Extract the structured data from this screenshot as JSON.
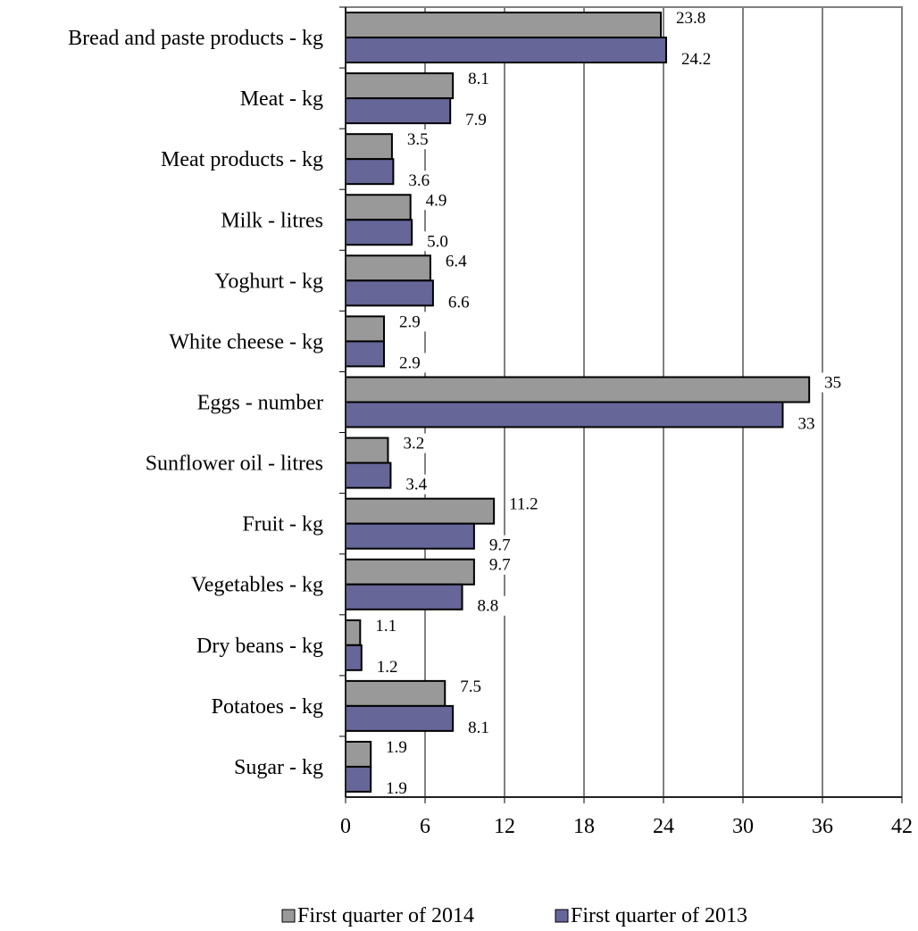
{
  "chart_data": {
    "type": "bar",
    "orientation": "horizontal",
    "categories": [
      "Bread and paste products - kg",
      "Meat - kg",
      "Meat products - kg",
      "Milk - litres",
      "Yoghurt - kg",
      "White cheese  - kg",
      "Eggs - number",
      "Sunflower oil - litres",
      "Fruit - kg",
      "Vegetables - kg",
      "Dry beans - kg",
      "Potatoes - kg",
      "Sugar - kg"
    ],
    "series": [
      {
        "name": "First  quarter of 2014",
        "color": "#999999",
        "values": [
          23.8,
          8.1,
          3.5,
          4.9,
          6.4,
          2.9,
          35,
          3.2,
          11.2,
          9.7,
          1.1,
          7.5,
          1.9
        ],
        "labels": [
          "23.8",
          "8.1",
          "3.5",
          "4.9",
          "6.4",
          "2.9",
          "35",
          "3.2",
          "11.2",
          "9.7",
          "1.1",
          "7.5",
          "1.9"
        ]
      },
      {
        "name": "First  quarter of 2013",
        "color": "#666699",
        "values": [
          24.2,
          7.9,
          3.6,
          5.0,
          6.6,
          2.9,
          33,
          3.4,
          9.7,
          8.8,
          1.2,
          8.1,
          1.9
        ],
        "labels": [
          "24.2",
          "7.9",
          "3.6",
          "5.0",
          "6.6",
          "2.9",
          "33",
          "3.4",
          "9.7",
          "8.8",
          "1.2",
          "8.1",
          "1.9"
        ]
      }
    ],
    "xlim": [
      0,
      42
    ],
    "xticks": [
      "0",
      "6",
      "12",
      "18",
      "24",
      "30",
      "36",
      "42"
    ],
    "grid": "vertical",
    "legend_position": "bottom",
    "title": "",
    "xlabel": "",
    "ylabel": ""
  }
}
